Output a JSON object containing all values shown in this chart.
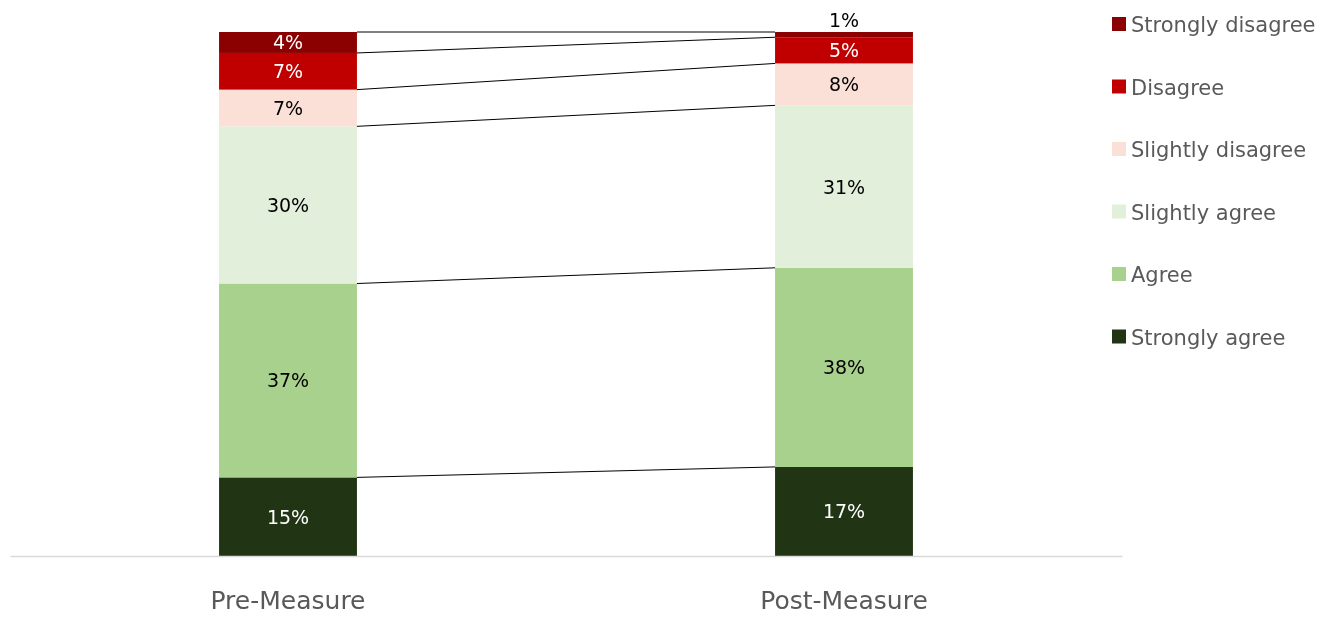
{
  "chart_data": {
    "type": "bar",
    "stacked": true,
    "categories": [
      "Pre-Measure",
      "Post-Measure"
    ],
    "legend": "right",
    "series": [
      {
        "name": "Strongly agree",
        "color": "#213515",
        "values": [
          15,
          17
        ],
        "value_labels": [
          "15%",
          "17%"
        ]
      },
      {
        "name": "Agree",
        "color": "#a9d18e",
        "values": [
          37,
          38
        ],
        "value_labels": [
          "37%",
          "38%"
        ]
      },
      {
        "name": "Slightly agree",
        "color": "#e2efda",
        "values": [
          30,
          31
        ],
        "value_labels": [
          "30%",
          "31%"
        ]
      },
      {
        "name": "Slightly disagree",
        "color": "#fbe0d8",
        "values": [
          7,
          8
        ],
        "value_labels": [
          "7%",
          "8%"
        ]
      },
      {
        "name": "Disagree",
        "color": "#c00000",
        "values": [
          7,
          5
        ],
        "value_labels": [
          "7%",
          "5%"
        ]
      },
      {
        "name": "Strongly disagree",
        "color": "#8b0000",
        "values": [
          4,
          1
        ],
        "value_labels": [
          "4%",
          "1%"
        ]
      }
    ]
  }
}
